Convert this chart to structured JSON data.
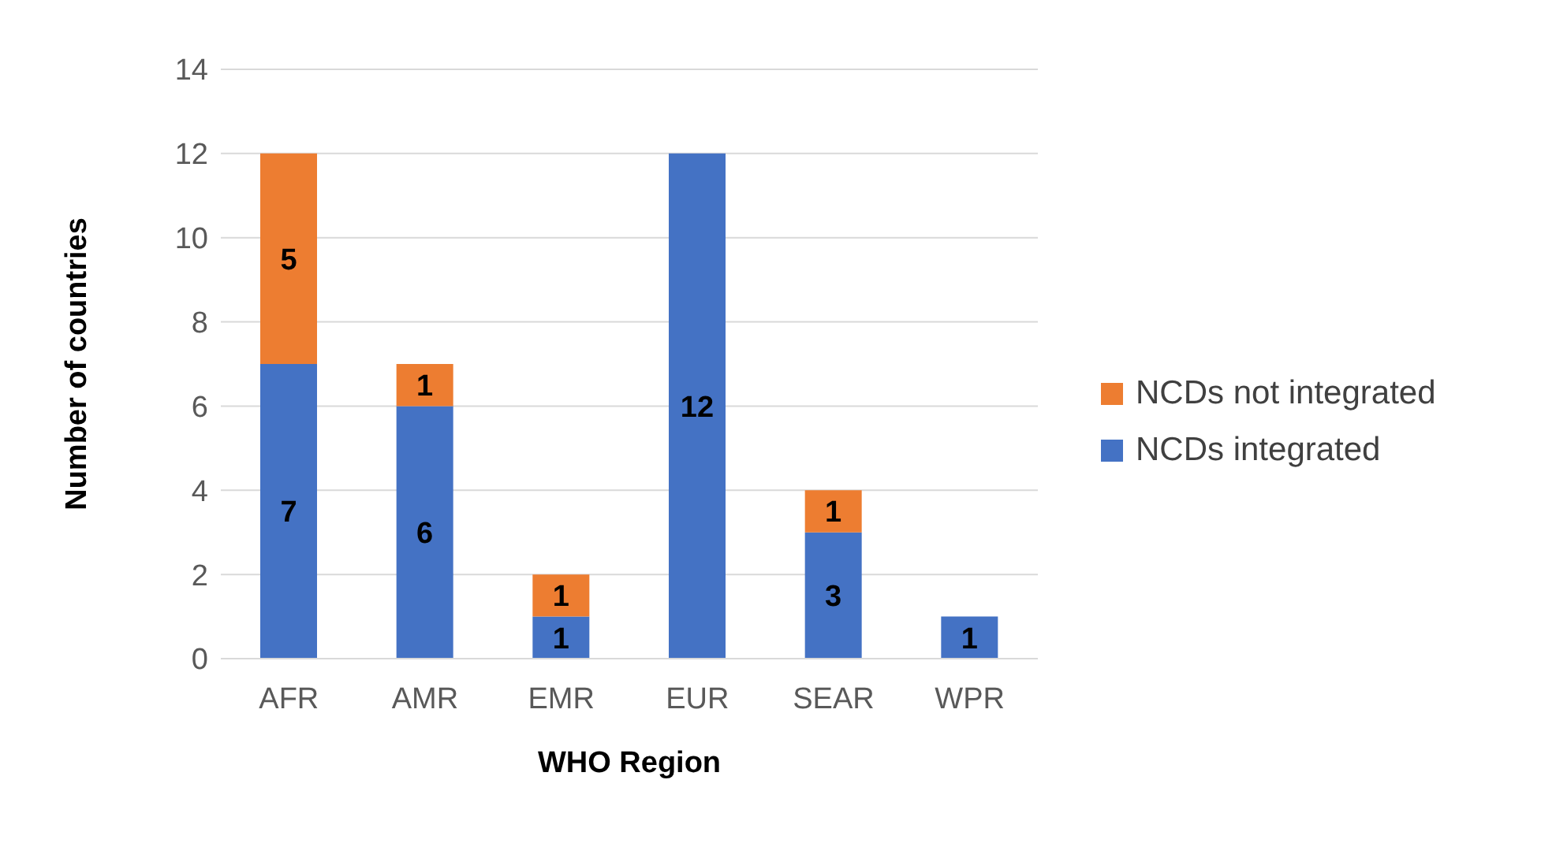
{
  "chart_data": {
    "type": "bar",
    "stacked": true,
    "xlabel": "WHO Region",
    "ylabel": "Number of countries",
    "categories": [
      "AFR",
      "AMR",
      "EMR",
      "EUR",
      "SEAR",
      "WPR"
    ],
    "series": [
      {
        "name": "NCDs integrated",
        "color": "#4472c4",
        "values": [
          7,
          6,
          1,
          12,
          3,
          1
        ]
      },
      {
        "name": "NCDs not integrated",
        "color": "#ed7d31",
        "values": [
          5,
          1,
          1,
          null,
          1,
          null
        ]
      }
    ],
    "ylim": [
      0,
      14
    ],
    "yticks": [
      0,
      2,
      4,
      6,
      8,
      10,
      12,
      14
    ],
    "grid": "y",
    "legend": "right",
    "data_labels": true
  }
}
